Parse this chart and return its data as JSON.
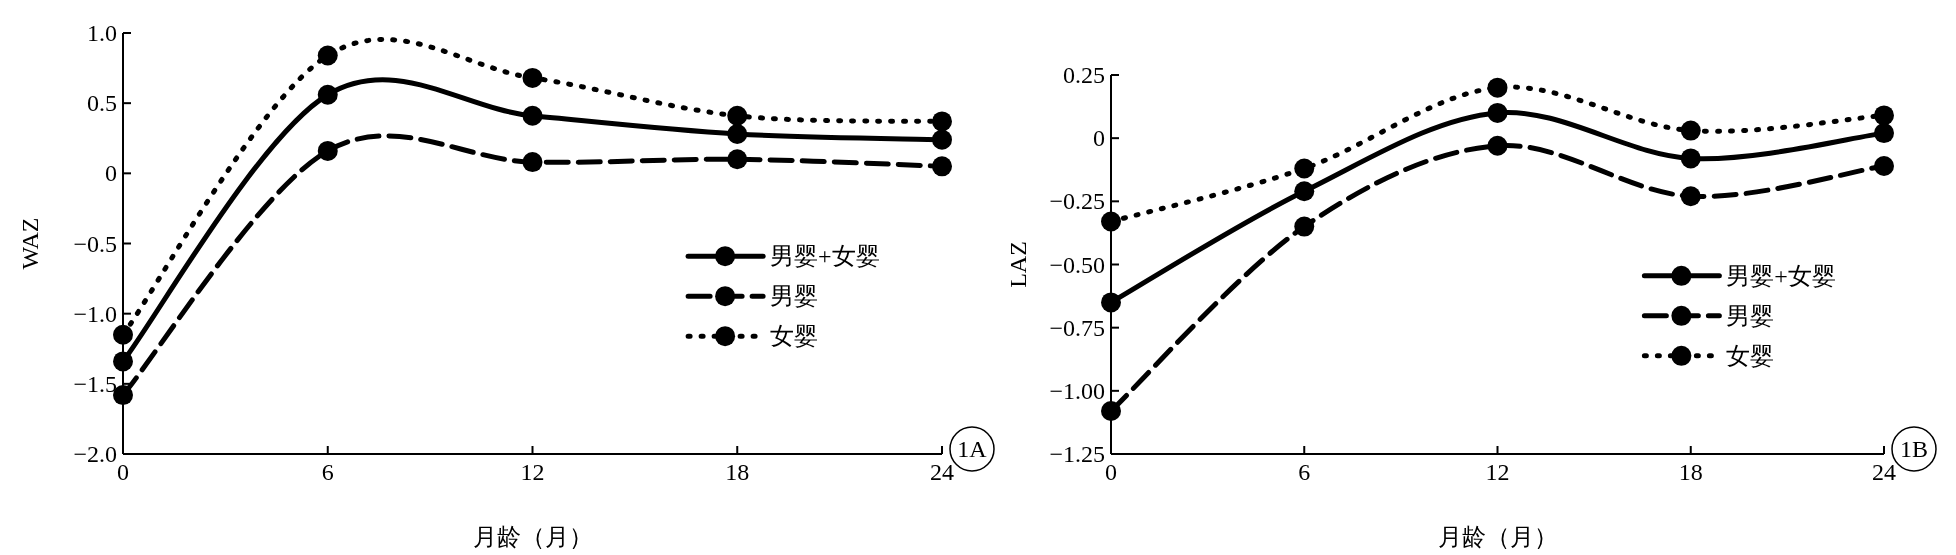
{
  "chart_data": [
    {
      "type": "line",
      "xlabel": "月龄（月）",
      "ylabel": "WAZ",
      "x": [
        0,
        6,
        12,
        18,
        24
      ],
      "xlim": [
        0,
        24
      ],
      "xticks": [
        0,
        6,
        12,
        18,
        24
      ],
      "ylim": [
        -2.0,
        1.0
      ],
      "yticks": [
        {
          "value": -2.0,
          "label": "−2.0"
        },
        {
          "value": -1.5,
          "label": "−1.5"
        },
        {
          "value": -1.0,
          "label": "−1.0"
        },
        {
          "value": -0.5,
          "label": "−0.5"
        },
        0,
        0.5,
        {
          "value": 1.0,
          "label": "1.0"
        }
      ],
      "marker": "circle",
      "grid": false,
      "legend": "right",
      "annotations": [
        "1A"
      ],
      "series": [
        {
          "name": "男婴+女婴",
          "color": "#000000",
          "line_style": "solid",
          "values": [
            -1.34,
            0.56,
            0.41,
            0.28,
            0.24
          ]
        },
        {
          "name": "男婴",
          "color": "#000000",
          "line_style": "dashed",
          "values": [
            -1.58,
            0.16,
            0.08,
            0.1,
            0.05
          ]
        },
        {
          "name": "女婴",
          "color": "#000000",
          "line_style": "dotted",
          "values": [
            -1.15,
            0.84,
            0.68,
            0.41,
            0.37
          ]
        }
      ]
    },
    {
      "type": "line",
      "xlabel": "月龄（月）",
      "ylabel": "LAZ",
      "x": [
        0,
        6,
        12,
        18,
        24
      ],
      "xlim": [
        0,
        24
      ],
      "xticks": [
        0,
        6,
        12,
        18,
        24
      ],
      "ylim": [
        -1.25,
        0.25
      ],
      "yticks": [
        {
          "value": -1.25,
          "label": "−1.25"
        },
        {
          "value": -1.0,
          "label": "−1.00"
        },
        {
          "value": -0.75,
          "label": "−0.75"
        },
        {
          "value": -0.5,
          "label": "−0.50"
        },
        {
          "value": -0.25,
          "label": "−0.25"
        },
        0,
        0.25
      ],
      "marker": "circle",
      "grid": false,
      "legend": "right",
      "annotations": [
        "1B"
      ],
      "series": [
        {
          "name": "男婴+女婴",
          "color": "#000000",
          "line_style": "solid",
          "values": [
            -0.65,
            -0.21,
            0.1,
            -0.08,
            0.02
          ]
        },
        {
          "name": "男婴",
          "color": "#000000",
          "line_style": "dashed",
          "values": [
            -1.08,
            -0.35,
            -0.03,
            -0.23,
            -0.11
          ]
        },
        {
          "name": "女婴",
          "color": "#000000",
          "line_style": "dotted",
          "values": [
            -0.33,
            -0.12,
            0.2,
            0.03,
            0.09
          ]
        }
      ]
    }
  ]
}
